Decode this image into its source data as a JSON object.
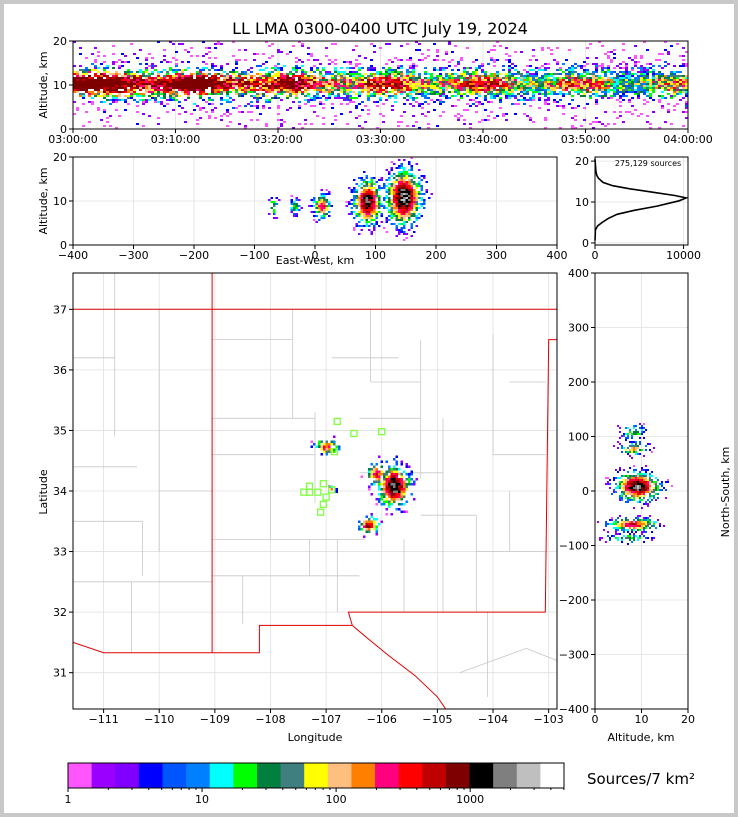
{
  "title": "LL LMA 0300-0400 UTC July 19, 2024",
  "colors": [
    "#ff55ff",
    "#9900ff",
    "#7f00ff",
    "#0000ff",
    "#0055ff",
    "#007fff",
    "#00ffff",
    "#00ff00",
    "#007f3f",
    "#3f7f7f",
    "#ffff00",
    "#ffbf7f",
    "#ff7f00",
    "#ff007f",
    "#ff0000",
    "#bf0000",
    "#7f0000",
    "#000000",
    "#7f7f7f",
    "#bfbfbf",
    "#ffffff"
  ],
  "chart_data": [
    {
      "id": "time-height",
      "type": "heatmap",
      "ylabel": "Altitude, km",
      "ylim": [
        0,
        20
      ],
      "yticks": [
        "0",
        "10",
        "20"
      ],
      "xticks": [
        "03:00:00",
        "03:10:00",
        "03:20:00",
        "03:30:00",
        "03:40:00",
        "03:50:00",
        "04:00:00"
      ],
      "x_range": [
        "03:00:00",
        "04:00:00"
      ]
    },
    {
      "id": "ew-height",
      "type": "heatmap",
      "ylabel": "Altitude, km",
      "xlabel": "East-West, km",
      "xlim": [
        -400,
        400
      ],
      "ylim": [
        0,
        20
      ],
      "xticks": [
        "−400",
        "−300",
        "−200",
        "−100",
        "0",
        "100",
        "200",
        "300",
        "400"
      ],
      "yticks": [
        "0",
        "10",
        "20"
      ]
    },
    {
      "id": "alt-histogram",
      "type": "line",
      "annotation": "275,129 sources",
      "xlim": [
        0,
        10500
      ],
      "ylim": [
        0,
        21
      ],
      "xticks": [
        "0",
        "10000"
      ],
      "yticks": [
        "0",
        "10",
        "20"
      ],
      "profile": [
        [
          0,
          0.6
        ],
        [
          40,
          3.2
        ],
        [
          300,
          4.2
        ],
        [
          800,
          5
        ],
        [
          1500,
          6
        ],
        [
          2500,
          7
        ],
        [
          4500,
          8
        ],
        [
          7000,
          9
        ],
        [
          9500,
          10.3
        ],
        [
          10300,
          11
        ],
        [
          9000,
          11.6
        ],
        [
          6500,
          12.4
        ],
        [
          4000,
          13.2
        ],
        [
          2000,
          14
        ],
        [
          900,
          14.8
        ],
        [
          400,
          15.8
        ],
        [
          200,
          16.5
        ],
        [
          100,
          17.5
        ],
        [
          0,
          20.5
        ]
      ]
    },
    {
      "id": "plan-view",
      "type": "heatmap",
      "xlabel": "Longitude",
      "ylabel": "Latitude",
      "xlim": [
        -111.55,
        -102.85
      ],
      "ylim": [
        30.4,
        37.6
      ],
      "xticks": [
        "−111",
        "−110",
        "−109",
        "−108",
        "−107",
        "−106",
        "−105",
        "−104",
        "−103"
      ],
      "yticks": [
        "31",
        "32",
        "33",
        "34",
        "35",
        "36",
        "37"
      ],
      "markers": [
        [
          -106.8,
          35.15
        ],
        [
          -106.0,
          34.98
        ],
        [
          -106.5,
          34.95
        ],
        [
          -107.3,
          34.08
        ],
        [
          -107.05,
          34.12
        ],
        [
          -107.3,
          33.98
        ],
        [
          -107.15,
          33.98
        ],
        [
          -107.0,
          33.9
        ],
        [
          -106.9,
          34.02
        ],
        [
          -107.05,
          33.78
        ],
        [
          -107.1,
          33.65
        ],
        [
          -107.4,
          33.98
        ],
        [
          -106.85,
          34.65
        ]
      ]
    },
    {
      "id": "ns-height",
      "type": "heatmap",
      "xlabel": "Altitude, km",
      "ylabel": "North-South, km",
      "xlim": [
        0,
        20
      ],
      "ylim": [
        -400,
        400
      ],
      "xticks": [
        "0",
        "10",
        "20"
      ],
      "yticks": [
        "−400",
        "−300",
        "−200",
        "−100",
        "0",
        "100",
        "200",
        "300",
        "400"
      ]
    }
  ],
  "colorbar": {
    "label": "Sources/7 km²",
    "ticks": [
      "1",
      "10",
      "100",
      "1000"
    ]
  }
}
